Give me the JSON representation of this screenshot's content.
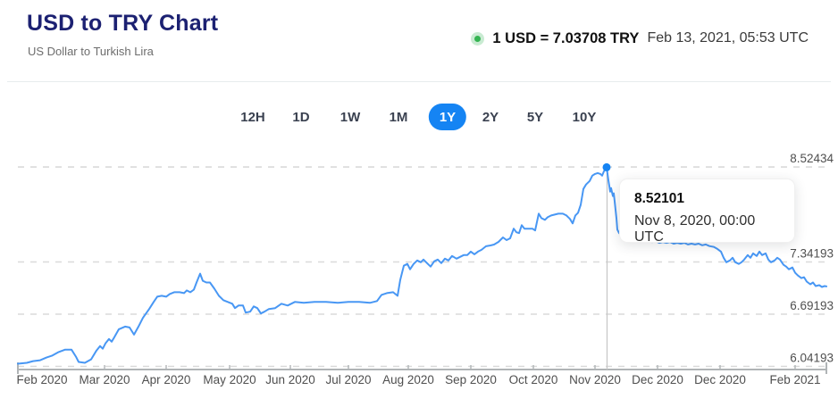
{
  "header": {
    "title": "USD to TRY Chart",
    "subtitle": "US Dollar to Turkish Lira",
    "rate": "1 USD = 7.03708 TRY",
    "timestamp": "Feb 13, 2021, 05:53 UTC"
  },
  "tabs": {
    "items": [
      "12H",
      "1D",
      "1W",
      "1M",
      "1Y",
      "2Y",
      "5Y",
      "10Y"
    ],
    "active": "1Y",
    "active_color": "#1584f3"
  },
  "chart_data": {
    "type": "line",
    "pair": "USD to TRY",
    "title": "USD to TRY exchange rate, 1 year",
    "line_color": "#4897f4",
    "grid_color": "#dadada",
    "axis_color": "#b0b4b6",
    "label_color": "#4f4f4f",
    "y_axis_labels": [
      "8.52434",
      "7.34193",
      "6.69193",
      "6.04193"
    ],
    "y_axis_values": [
      8.52434,
      7.34193,
      6.69193,
      6.04193
    ],
    "x_axis_labels": [
      "Feb 2020",
      "Mar 2020",
      "Apr 2020",
      "May 2020",
      "Jun 2020",
      "Jul 2020",
      "Aug 2020",
      "Sep 2020",
      "Oct 2020",
      "Nov 2020",
      "Dec 2020",
      "Dec 2020",
      "Feb 2021"
    ],
    "highlight": {
      "value_label": "8.52101",
      "value": 8.52101,
      "date": "Nov 8, 2020, 00:00 UTC",
      "dot_color": "#1584f3"
    },
    "points": [
      [
        20,
        6.075
      ],
      [
        30,
        6.086
      ],
      [
        37,
        6.108
      ],
      [
        45,
        6.119
      ],
      [
        52,
        6.152
      ],
      [
        58,
        6.174
      ],
      [
        65,
        6.218
      ],
      [
        73,
        6.251
      ],
      [
        80,
        6.251
      ],
      [
        85,
        6.163
      ],
      [
        88,
        6.097
      ],
      [
        95,
        6.086
      ],
      [
        102,
        6.13
      ],
      [
        108,
        6.24
      ],
      [
        112,
        6.295
      ],
      [
        115,
        6.262
      ],
      [
        118,
        6.328
      ],
      [
        122,
        6.383
      ],
      [
        125,
        6.35
      ],
      [
        128,
        6.405
      ],
      [
        133,
        6.504
      ],
      [
        140,
        6.537
      ],
      [
        145,
        6.526
      ],
      [
        150,
        6.438
      ],
      [
        155,
        6.537
      ],
      [
        160,
        6.646
      ],
      [
        167,
        6.756
      ],
      [
        172,
        6.844
      ],
      [
        176,
        6.91
      ],
      [
        181,
        6.921
      ],
      [
        186,
        6.91
      ],
      [
        190,
        6.943
      ],
      [
        195,
        6.965
      ],
      [
        201,
        6.965
      ],
      [
        206,
        6.954
      ],
      [
        209,
        6.987
      ],
      [
        213,
        6.965
      ],
      [
        217,
        6.998
      ],
      [
        220,
        7.086
      ],
      [
        224,
        7.196
      ],
      [
        227,
        7.108
      ],
      [
        231,
        7.086
      ],
      [
        235,
        7.086
      ],
      [
        240,
        7.009
      ],
      [
        245,
        6.921
      ],
      [
        250,
        6.866
      ],
      [
        255,
        6.844
      ],
      [
        260,
        6.822
      ],
      [
        263,
        6.767
      ],
      [
        267,
        6.8
      ],
      [
        272,
        6.8
      ],
      [
        275,
        6.712
      ],
      [
        280,
        6.723
      ],
      [
        284,
        6.789
      ],
      [
        288,
        6.767
      ],
      [
        292,
        6.701
      ],
      [
        296,
        6.723
      ],
      [
        301,
        6.756
      ],
      [
        308,
        6.767
      ],
      [
        315,
        6.822
      ],
      [
        322,
        6.8
      ],
      [
        330,
        6.844
      ],
      [
        340,
        6.833
      ],
      [
        352,
        6.844
      ],
      [
        365,
        6.844
      ],
      [
        378,
        6.833
      ],
      [
        390,
        6.844
      ],
      [
        402,
        6.844
      ],
      [
        414,
        6.833
      ],
      [
        422,
        6.855
      ],
      [
        427,
        6.932
      ],
      [
        433,
        6.954
      ],
      [
        440,
        6.965
      ],
      [
        445,
        6.921
      ],
      [
        448,
        7.119
      ],
      [
        452,
        7.295
      ],
      [
        456,
        7.317
      ],
      [
        459,
        7.251
      ],
      [
        463,
        7.317
      ],
      [
        467,
        7.361
      ],
      [
        471,
        7.339
      ],
      [
        474,
        7.372
      ],
      [
        478,
        7.328
      ],
      [
        482,
        7.284
      ],
      [
        486,
        7.35
      ],
      [
        490,
        7.372
      ],
      [
        494,
        7.328
      ],
      [
        498,
        7.383
      ],
      [
        502,
        7.361
      ],
      [
        506,
        7.416
      ],
      [
        511,
        7.383
      ],
      [
        515,
        7.405
      ],
      [
        519,
        7.427
      ],
      [
        523,
        7.427
      ],
      [
        527,
        7.471
      ],
      [
        531,
        7.438
      ],
      [
        535,
        7.471
      ],
      [
        539,
        7.493
      ],
      [
        544,
        7.537
      ],
      [
        549,
        7.548
      ],
      [
        553,
        7.559
      ],
      [
        558,
        7.592
      ],
      [
        563,
        7.647
      ],
      [
        567,
        7.614
      ],
      [
        571,
        7.636
      ],
      [
        575,
        7.756
      ],
      [
        578,
        7.712
      ],
      [
        581,
        7.701
      ],
      [
        584,
        7.8
      ],
      [
        587,
        7.756
      ],
      [
        591,
        7.756
      ],
      [
        596,
        7.756
      ],
      [
        599,
        7.734
      ],
      [
        603,
        7.943
      ],
      [
        606,
        7.888
      ],
      [
        610,
        7.866
      ],
      [
        613,
        7.899
      ],
      [
        617,
        7.921
      ],
      [
        621,
        7.932
      ],
      [
        625,
        7.943
      ],
      [
        630,
        7.943
      ],
      [
        634,
        7.921
      ],
      [
        638,
        7.877
      ],
      [
        641,
        7.822
      ],
      [
        644,
        7.921
      ],
      [
        647,
        7.954
      ],
      [
        650,
        8.053
      ],
      [
        653,
        8.251
      ],
      [
        656,
        8.306
      ],
      [
        660,
        8.35
      ],
      [
        663,
        8.416
      ],
      [
        666,
        8.438
      ],
      [
        669,
        8.449
      ],
      [
        672,
        8.438
      ],
      [
        674,
        8.416
      ],
      [
        676,
        8.471
      ],
      [
        679,
        8.52101
      ],
      [
        681,
        8.36
      ],
      [
        683,
        8.218
      ],
      [
        684,
        8.262
      ],
      [
        686,
        8.163
      ],
      [
        687,
        8.196
      ],
      [
        688,
        8.097
      ],
      [
        690,
        7.888
      ],
      [
        691,
        7.745
      ],
      [
        693,
        7.701
      ],
      [
        695,
        7.745
      ],
      [
        698,
        7.679
      ],
      [
        701,
        7.701
      ],
      [
        704,
        7.655
      ],
      [
        707,
        7.678
      ],
      [
        710,
        7.632
      ],
      [
        714,
        7.645
      ],
      [
        718,
        7.6
      ],
      [
        722,
        7.62
      ],
      [
        726,
        7.6
      ],
      [
        730,
        7.59
      ],
      [
        734,
        7.6
      ],
      [
        738,
        7.58
      ],
      [
        742,
        7.59
      ],
      [
        746,
        7.58
      ],
      [
        750,
        7.59
      ],
      [
        754,
        7.57
      ],
      [
        758,
        7.58
      ],
      [
        762,
        7.57
      ],
      [
        766,
        7.58
      ],
      [
        770,
        7.56
      ],
      [
        774,
        7.57
      ],
      [
        778,
        7.56
      ],
      [
        782,
        7.57
      ],
      [
        786,
        7.55
      ],
      [
        790,
        7.56
      ],
      [
        794,
        7.54
      ],
      [
        799,
        7.53
      ],
      [
        803,
        7.504
      ],
      [
        807,
        7.471
      ],
      [
        810,
        7.394
      ],
      [
        813,
        7.339
      ],
      [
        817,
        7.361
      ],
      [
        820,
        7.394
      ],
      [
        823,
        7.339
      ],
      [
        827,
        7.317
      ],
      [
        830,
        7.339
      ],
      [
        833,
        7.372
      ],
      [
        837,
        7.427
      ],
      [
        840,
        7.394
      ],
      [
        843,
        7.449
      ],
      [
        847,
        7.416
      ],
      [
        850,
        7.471
      ],
      [
        853,
        7.427
      ],
      [
        857,
        7.449
      ],
      [
        860,
        7.372
      ],
      [
        863,
        7.339
      ],
      [
        867,
        7.361
      ],
      [
        870,
        7.394
      ],
      [
        873,
        7.372
      ],
      [
        877,
        7.306
      ],
      [
        880,
        7.284
      ],
      [
        883,
        7.251
      ],
      [
        887,
        7.273
      ],
      [
        890,
        7.207
      ],
      [
        893,
        7.174
      ],
      [
        897,
        7.141
      ],
      [
        900,
        7.152
      ],
      [
        903,
        7.097
      ],
      [
        907,
        7.064
      ],
      [
        910,
        7.086
      ],
      [
        913,
        7.042
      ],
      [
        917,
        7.053
      ],
      [
        920,
        7.031
      ],
      [
        923,
        7.042
      ],
      [
        925,
        7.03708
      ]
    ]
  }
}
